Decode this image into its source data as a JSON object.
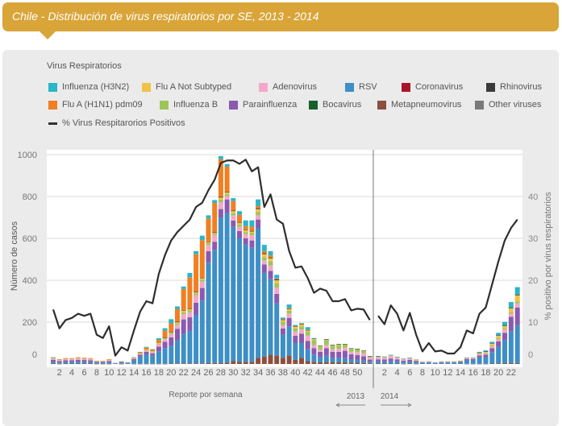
{
  "header": {
    "title": "Chile - Distribución de virus respiratorios por SE, 2013 - 2014"
  },
  "legend": {
    "title": "Virus Respiratorios",
    "line_label": "% Virus Respitarorios Positivos"
  },
  "chart_data": {
    "type": "bar",
    "stacked": true,
    "grid": true,
    "legend_position": "top-left",
    "x_label": "Reporte por semana",
    "y_label": "Número de casos",
    "y2_label": "% positivo por virus respiratorios",
    "ylim": [
      0,
      1000
    ],
    "y_ticks": [
      "0",
      "200",
      "400",
      "600",
      "800",
      "1000"
    ],
    "y2lim": [
      0,
      50
    ],
    "y2_ticks": [
      "0",
      "10",
      "20",
      "30",
      "40"
    ],
    "years": [
      {
        "label": "2013",
        "weeks": 52,
        "tick_labels": [
          "2",
          "4",
          "6",
          "8",
          "10",
          "12",
          "14",
          "16",
          "18",
          "20",
          "22",
          "24",
          "26",
          "28",
          "30",
          "32",
          "34",
          "36",
          "38",
          "40",
          "42",
          "44",
          "46",
          "48",
          "50"
        ],
        "arrow": "left"
      },
      {
        "label": "2014",
        "weeks": 23,
        "tick_labels": [
          "2",
          "4",
          "6",
          "8",
          "10",
          "12",
          "14",
          "16",
          "18",
          "20",
          "22"
        ],
        "arrow": "right"
      }
    ],
    "series": [
      {
        "name": "Influenza (H3N2)",
        "color": "#2bb5c9",
        "values_2013": [
          1,
          0,
          0,
          0,
          0,
          0,
          0,
          0,
          0,
          0,
          0,
          0,
          0,
          1,
          2,
          4,
          2,
          8,
          12,
          20,
          13,
          12,
          21,
          15,
          22,
          15,
          14,
          15,
          13,
          14,
          17,
          28,
          30,
          32,
          30,
          20,
          17,
          7,
          16,
          5,
          3,
          13,
          2,
          0,
          0,
          0,
          0,
          0,
          0,
          0,
          0,
          0
        ],
        "values_2014": [
          1,
          1,
          2,
          1,
          1,
          1,
          0,
          0,
          0,
          0,
          0,
          0,
          0,
          0,
          1,
          1,
          3,
          5,
          7,
          12,
          18,
          27,
          35
        ]
      },
      {
        "name": "Flu A Not Subtyped",
        "color": "#f0c24a",
        "values_2013": [
          1,
          1,
          1,
          1,
          1,
          1,
          1,
          1,
          1,
          1,
          0,
          0,
          0,
          1,
          1,
          2,
          2,
          3,
          4,
          6,
          6,
          10,
          6,
          6,
          6,
          6,
          4,
          10,
          8,
          10,
          10,
          10,
          8,
          15,
          15,
          15,
          15,
          10,
          8,
          8,
          8,
          5,
          5,
          3,
          3,
          3,
          4,
          2,
          2,
          2,
          2,
          1
        ],
        "values_2014": [
          1,
          1,
          1,
          1,
          1,
          1,
          1,
          0,
          0,
          0,
          0,
          0,
          0,
          1,
          1,
          1,
          4,
          5,
          10,
          12,
          12,
          20,
          30
        ]
      },
      {
        "name": "Adenovirus",
        "color": "#f3a8c9",
        "values_2013": [
          6,
          5,
          5,
          6,
          7,
          6,
          6,
          3,
          3,
          4,
          1,
          2,
          1,
          3,
          4,
          5,
          5,
          10,
          12,
          15,
          20,
          25,
          25,
          35,
          30,
          30,
          33,
          33,
          15,
          25,
          20,
          20,
          25,
          20,
          20,
          25,
          30,
          15,
          20,
          20,
          20,
          25,
          15,
          10,
          15,
          12,
          15,
          15,
          12,
          14,
          14,
          10
        ],
        "values_2014": [
          10,
          9,
          12,
          8,
          6,
          7,
          5,
          3,
          3,
          2,
          3,
          3,
          3,
          3,
          4,
          4,
          6,
          6,
          8,
          10,
          15,
          15,
          20
        ]
      },
      {
        "name": "RSV",
        "color": "#3d8fc6",
        "values_2013": [
          8,
          6,
          8,
          8,
          9,
          8,
          8,
          5,
          5,
          7,
          3,
          5,
          4,
          16,
          35,
          45,
          40,
          60,
          75,
          85,
          110,
          140,
          155,
          230,
          300,
          480,
          540,
          695,
          715,
          640,
          590,
          560,
          545,
          620,
          400,
          360,
          250,
          110,
          140,
          80,
          70,
          55,
          35,
          25,
          30,
          20,
          20,
          20,
          15,
          15,
          12,
          8
        ],
        "values_2014": [
          10,
          10,
          12,
          10,
          8,
          10,
          8,
          5,
          6,
          4,
          6,
          6,
          6,
          8,
          16,
          16,
          30,
          32,
          55,
          80,
          110,
          150,
          180
        ]
      },
      {
        "name": "Coronavirus",
        "color": "#a8152a",
        "values_2013": [],
        "values_2014": []
      },
      {
        "name": "Rhinovirus",
        "color": "#3a3a3a",
        "values_2013": [
          0,
          0,
          0,
          0,
          0,
          0,
          0,
          0,
          0,
          0,
          0,
          0,
          0,
          0,
          0,
          0,
          0,
          0,
          1,
          1,
          2,
          2,
          2,
          2,
          2,
          2,
          2,
          3,
          3,
          3,
          3,
          3,
          3,
          4,
          4,
          4,
          4,
          3,
          3,
          3,
          3,
          2,
          2,
          2,
          1,
          1,
          1,
          1,
          1,
          1,
          1,
          1
        ],
        "values_2014": [
          1,
          0,
          0,
          0,
          0,
          0,
          0,
          0,
          0,
          0,
          0,
          0,
          0,
          0,
          0,
          0,
          1,
          1,
          2,
          2,
          2,
          3,
          4
        ]
      },
      {
        "name": "Flu A (H1N1) pdm09",
        "color": "#f07f22",
        "values_2013": [
          1,
          1,
          1,
          1,
          1,
          1,
          1,
          0,
          0,
          2,
          0,
          0,
          0,
          2,
          4,
          10,
          8,
          15,
          32,
          40,
          60,
          100,
          150,
          180,
          180,
          110,
          140,
          180,
          120,
          45,
          35,
          15,
          20,
          10,
          10,
          10,
          5,
          2,
          2,
          1,
          1,
          1,
          0,
          0,
          0,
          0,
          0,
          0,
          0,
          0,
          0,
          0
        ],
        "values_2014": [
          0,
          0,
          0,
          0,
          0,
          0,
          0,
          0,
          0,
          0,
          0,
          0,
          0,
          0,
          0,
          0,
          0,
          0,
          0,
          0,
          0,
          0,
          0
        ]
      },
      {
        "name": "Influenza B",
        "color": "#9cc65a",
        "values_2013": [
          3,
          2,
          3,
          2,
          3,
          3,
          2,
          1,
          1,
          2,
          0,
          1,
          1,
          2,
          3,
          3,
          3,
          4,
          4,
          5,
          6,
          8,
          8,
          8,
          10,
          8,
          6,
          12,
          10,
          10,
          10,
          10,
          10,
          15,
          15,
          20,
          20,
          15,
          15,
          15,
          15,
          20,
          25,
          15,
          25,
          18,
          18,
          15,
          14,
          13,
          10,
          5
        ],
        "values_2014": [
          3,
          3,
          3,
          3,
          2,
          2,
          2,
          1,
          1,
          0,
          1,
          1,
          1,
          1,
          2,
          2,
          3,
          3,
          4,
          5,
          5,
          6,
          8
        ]
      },
      {
        "name": "Parainfluenza",
        "color": "#8a5ab0",
        "values_2013": [
          10,
          7,
          8,
          8,
          9,
          9,
          8,
          5,
          5,
          6,
          2,
          4,
          3,
          6,
          8,
          12,
          10,
          22,
          30,
          40,
          55,
          70,
          65,
          60,
          60,
          55,
          39,
          40,
          65,
          30,
          35,
          30,
          35,
          40,
          40,
          40,
          45,
          30,
          40,
          35,
          45,
          40,
          30,
          25,
          35,
          30,
          30,
          35,
          25,
          22,
          20,
          10
        ],
        "values_2014": [
          10,
          10,
          12,
          10,
          7,
          8,
          6,
          3,
          3,
          2,
          3,
          3,
          3,
          4,
          6,
          6,
          10,
          12,
          18,
          25,
          35,
          70,
          85
        ]
      },
      {
        "name": "Bocavirus",
        "color": "#17612e",
        "values_2013": [],
        "values_2014": []
      },
      {
        "name": "Metapneumovirus",
        "color": "#8c5040",
        "values_2013": [
          2,
          1,
          2,
          2,
          2,
          2,
          2,
          1,
          1,
          1,
          0,
          1,
          0,
          1,
          1,
          1,
          1,
          1,
          1,
          2,
          3,
          3,
          3,
          3,
          3,
          4,
          5,
          5,
          6,
          15,
          10,
          10,
          10,
          30,
          35,
          45,
          40,
          30,
          40,
          20,
          30,
          15,
          10,
          8,
          10,
          8,
          8,
          8,
          6,
          6,
          5,
          3
        ],
        "values_2014": [
          2,
          2,
          2,
          2,
          1,
          2,
          1,
          0,
          0,
          0,
          0,
          0,
          0,
          0,
          1,
          1,
          1,
          1,
          2,
          3,
          4,
          5,
          5
        ]
      },
      {
        "name": "Other viruses",
        "color": "#7a7a7a",
        "values_2013": [],
        "values_2014": []
      }
    ],
    "line": {
      "name": "% Virus Respitarorios Positivos",
      "color": "#2e2e2e",
      "axis": "right",
      "values_2013": [
        13,
        8.5,
        10.5,
        11,
        12,
        11.5,
        12,
        7,
        6.2,
        9,
        2,
        4,
        3.2,
        8,
        12.5,
        15,
        14.5,
        21.5,
        26,
        29.5,
        31.5,
        33,
        34.5,
        37.5,
        38.5,
        41.5,
        44,
        48,
        48.6,
        48.6,
        47.8,
        48.8,
        46,
        47,
        37.5,
        40.5,
        34.5,
        33.5,
        27,
        23,
        23.3,
        20.5,
        17,
        18,
        17.5,
        15,
        15,
        15.5,
        12.8,
        13.2,
        13,
        10.5
      ],
      "values_2014": [
        11.5,
        9.5,
        14,
        12,
        8,
        12.2,
        7,
        3,
        5,
        3,
        3.2,
        2.5,
        2.5,
        4,
        8,
        7.3,
        12,
        13.5,
        19,
        24.5,
        29.5,
        32.5,
        34.5
      ]
    }
  }
}
